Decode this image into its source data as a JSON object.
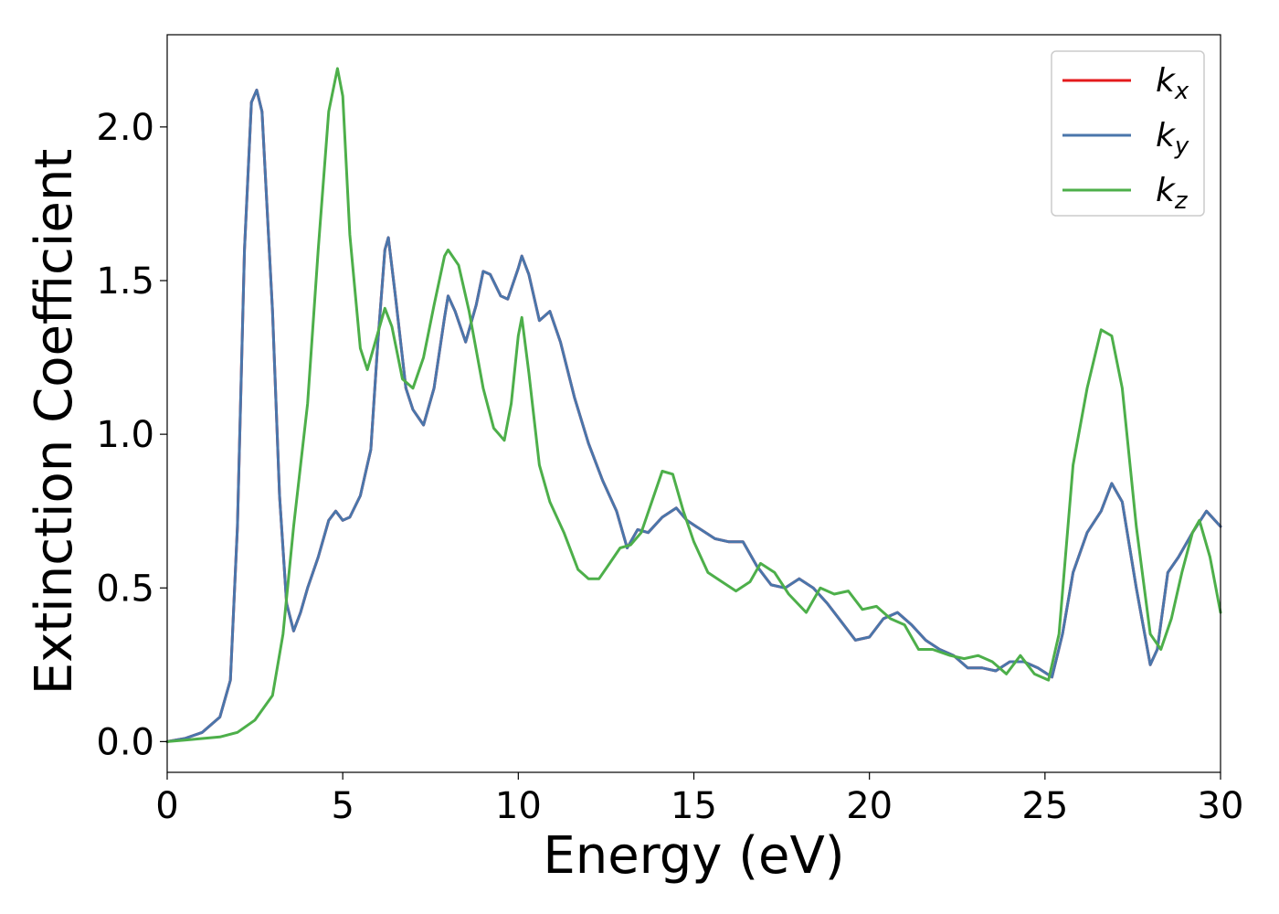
{
  "chart_data": {
    "type": "line",
    "title": "",
    "xlabel": "Energy (eV)",
    "ylabel": "Extinction Coefficient",
    "xlim": [
      0,
      30
    ],
    "ylim": [
      -0.1,
      2.3
    ],
    "xticks": [
      0,
      5,
      10,
      15,
      20,
      25,
      30
    ],
    "yticks": [
      0.0,
      0.5,
      1.0,
      1.5,
      2.0
    ],
    "xtick_labels": [
      "0",
      "5",
      "10",
      "15",
      "20",
      "25",
      "30"
    ],
    "ytick_labels": [
      "0.0",
      "0.5",
      "1.0",
      "1.5",
      "2.0"
    ],
    "grid": false,
    "legend_position": "top-right",
    "series": [
      {
        "name": "k",
        "subscript": "x",
        "color": "#e41a1c",
        "points": [
          [
            0,
            0
          ],
          [
            0.5,
            0.01
          ],
          [
            1.0,
            0.03
          ],
          [
            1.5,
            0.08
          ],
          [
            1.8,
            0.2
          ],
          [
            2.0,
            0.7
          ],
          [
            2.2,
            1.6
          ],
          [
            2.4,
            2.08
          ],
          [
            2.55,
            2.12
          ],
          [
            2.7,
            2.05
          ],
          [
            3.0,
            1.4
          ],
          [
            3.2,
            0.8
          ],
          [
            3.4,
            0.45
          ],
          [
            3.6,
            0.36
          ],
          [
            3.8,
            0.42
          ],
          [
            4.0,
            0.5
          ],
          [
            4.3,
            0.6
          ],
          [
            4.6,
            0.72
          ],
          [
            4.8,
            0.75
          ],
          [
            5.0,
            0.72
          ],
          [
            5.2,
            0.73
          ],
          [
            5.5,
            0.8
          ],
          [
            5.8,
            0.95
          ],
          [
            6.0,
            1.3
          ],
          [
            6.2,
            1.6
          ],
          [
            6.3,
            1.64
          ],
          [
            6.5,
            1.45
          ],
          [
            6.8,
            1.15
          ],
          [
            7.0,
            1.08
          ],
          [
            7.3,
            1.03
          ],
          [
            7.6,
            1.15
          ],
          [
            7.9,
            1.38
          ],
          [
            8.0,
            1.45
          ],
          [
            8.2,
            1.4
          ],
          [
            8.5,
            1.3
          ],
          [
            8.8,
            1.42
          ],
          [
            9.0,
            1.53
          ],
          [
            9.2,
            1.52
          ],
          [
            9.5,
            1.45
          ],
          [
            9.7,
            1.44
          ],
          [
            10.0,
            1.54
          ],
          [
            10.1,
            1.58
          ],
          [
            10.3,
            1.52
          ],
          [
            10.6,
            1.37
          ],
          [
            10.9,
            1.4
          ],
          [
            11.2,
            1.3
          ],
          [
            11.6,
            1.12
          ],
          [
            12.0,
            0.97
          ],
          [
            12.4,
            0.85
          ],
          [
            12.8,
            0.75
          ],
          [
            13.1,
            0.63
          ],
          [
            13.4,
            0.69
          ],
          [
            13.7,
            0.68
          ],
          [
            14.1,
            0.73
          ],
          [
            14.5,
            0.76
          ],
          [
            14.8,
            0.72
          ],
          [
            15.2,
            0.69
          ],
          [
            15.6,
            0.66
          ],
          [
            16.0,
            0.65
          ],
          [
            16.4,
            0.65
          ],
          [
            16.8,
            0.57
          ],
          [
            17.2,
            0.51
          ],
          [
            17.6,
            0.5
          ],
          [
            18.0,
            0.53
          ],
          [
            18.4,
            0.5
          ],
          [
            18.8,
            0.45
          ],
          [
            19.2,
            0.39
          ],
          [
            19.6,
            0.33
          ],
          [
            20.0,
            0.34
          ],
          [
            20.4,
            0.4
          ],
          [
            20.8,
            0.42
          ],
          [
            21.2,
            0.38
          ],
          [
            21.6,
            0.33
          ],
          [
            22.0,
            0.3
          ],
          [
            22.4,
            0.28
          ],
          [
            22.8,
            0.24
          ],
          [
            23.2,
            0.24
          ],
          [
            23.6,
            0.23
          ],
          [
            24.0,
            0.26
          ],
          [
            24.4,
            0.26
          ],
          [
            24.8,
            0.24
          ],
          [
            25.2,
            0.21
          ],
          [
            25.5,
            0.35
          ],
          [
            25.8,
            0.55
          ],
          [
            26.2,
            0.68
          ],
          [
            26.6,
            0.75
          ],
          [
            26.9,
            0.84
          ],
          [
            27.2,
            0.78
          ],
          [
            27.6,
            0.5
          ],
          [
            28.0,
            0.25
          ],
          [
            28.2,
            0.3
          ],
          [
            28.5,
            0.55
          ],
          [
            28.8,
            0.6
          ],
          [
            29.2,
            0.68
          ],
          [
            29.6,
            0.75
          ],
          [
            30.0,
            0.7
          ]
        ]
      },
      {
        "name": "k",
        "subscript": "y",
        "color": "#4a76ab",
        "points": [
          [
            0,
            0
          ],
          [
            0.5,
            0.01
          ],
          [
            1.0,
            0.03
          ],
          [
            1.5,
            0.08
          ],
          [
            1.8,
            0.2
          ],
          [
            2.0,
            0.7
          ],
          [
            2.2,
            1.6
          ],
          [
            2.4,
            2.08
          ],
          [
            2.55,
            2.12
          ],
          [
            2.7,
            2.05
          ],
          [
            3.0,
            1.4
          ],
          [
            3.2,
            0.8
          ],
          [
            3.4,
            0.45
          ],
          [
            3.6,
            0.36
          ],
          [
            3.8,
            0.42
          ],
          [
            4.0,
            0.5
          ],
          [
            4.3,
            0.6
          ],
          [
            4.6,
            0.72
          ],
          [
            4.8,
            0.75
          ],
          [
            5.0,
            0.72
          ],
          [
            5.2,
            0.73
          ],
          [
            5.5,
            0.8
          ],
          [
            5.8,
            0.95
          ],
          [
            6.0,
            1.3
          ],
          [
            6.2,
            1.6
          ],
          [
            6.3,
            1.64
          ],
          [
            6.5,
            1.45
          ],
          [
            6.8,
            1.15
          ],
          [
            7.0,
            1.08
          ],
          [
            7.3,
            1.03
          ],
          [
            7.6,
            1.15
          ],
          [
            7.9,
            1.38
          ],
          [
            8.0,
            1.45
          ],
          [
            8.2,
            1.4
          ],
          [
            8.5,
            1.3
          ],
          [
            8.8,
            1.42
          ],
          [
            9.0,
            1.53
          ],
          [
            9.2,
            1.52
          ],
          [
            9.5,
            1.45
          ],
          [
            9.7,
            1.44
          ],
          [
            10.0,
            1.54
          ],
          [
            10.1,
            1.58
          ],
          [
            10.3,
            1.52
          ],
          [
            10.6,
            1.37
          ],
          [
            10.9,
            1.4
          ],
          [
            11.2,
            1.3
          ],
          [
            11.6,
            1.12
          ],
          [
            12.0,
            0.97
          ],
          [
            12.4,
            0.85
          ],
          [
            12.8,
            0.75
          ],
          [
            13.1,
            0.63
          ],
          [
            13.4,
            0.69
          ],
          [
            13.7,
            0.68
          ],
          [
            14.1,
            0.73
          ],
          [
            14.5,
            0.76
          ],
          [
            14.8,
            0.72
          ],
          [
            15.2,
            0.69
          ],
          [
            15.6,
            0.66
          ],
          [
            16.0,
            0.65
          ],
          [
            16.4,
            0.65
          ],
          [
            16.8,
            0.57
          ],
          [
            17.2,
            0.51
          ],
          [
            17.6,
            0.5
          ],
          [
            18.0,
            0.53
          ],
          [
            18.4,
            0.5
          ],
          [
            18.8,
            0.45
          ],
          [
            19.2,
            0.39
          ],
          [
            19.6,
            0.33
          ],
          [
            20.0,
            0.34
          ],
          [
            20.4,
            0.4
          ],
          [
            20.8,
            0.42
          ],
          [
            21.2,
            0.38
          ],
          [
            21.6,
            0.33
          ],
          [
            22.0,
            0.3
          ],
          [
            22.4,
            0.28
          ],
          [
            22.8,
            0.24
          ],
          [
            23.2,
            0.24
          ],
          [
            23.6,
            0.23
          ],
          [
            24.0,
            0.26
          ],
          [
            24.4,
            0.26
          ],
          [
            24.8,
            0.24
          ],
          [
            25.2,
            0.21
          ],
          [
            25.5,
            0.35
          ],
          [
            25.8,
            0.55
          ],
          [
            26.2,
            0.68
          ],
          [
            26.6,
            0.75
          ],
          [
            26.9,
            0.84
          ],
          [
            27.2,
            0.78
          ],
          [
            27.6,
            0.5
          ],
          [
            28.0,
            0.25
          ],
          [
            28.2,
            0.3
          ],
          [
            28.5,
            0.55
          ],
          [
            28.8,
            0.6
          ],
          [
            29.2,
            0.68
          ],
          [
            29.6,
            0.75
          ],
          [
            30.0,
            0.7
          ]
        ]
      },
      {
        "name": "k",
        "subscript": "z",
        "color": "#4daf4a",
        "points": [
          [
            0,
            0
          ],
          [
            0.5,
            0.005
          ],
          [
            1.0,
            0.01
          ],
          [
            1.5,
            0.015
          ],
          [
            2.0,
            0.03
          ],
          [
            2.5,
            0.07
          ],
          [
            3.0,
            0.15
          ],
          [
            3.3,
            0.35
          ],
          [
            3.6,
            0.7
          ],
          [
            4.0,
            1.1
          ],
          [
            4.3,
            1.6
          ],
          [
            4.6,
            2.05
          ],
          [
            4.85,
            2.19
          ],
          [
            5.0,
            2.1
          ],
          [
            5.2,
            1.65
          ],
          [
            5.5,
            1.28
          ],
          [
            5.7,
            1.21
          ],
          [
            6.0,
            1.33
          ],
          [
            6.2,
            1.41
          ],
          [
            6.4,
            1.35
          ],
          [
            6.7,
            1.18
          ],
          [
            7.0,
            1.15
          ],
          [
            7.3,
            1.25
          ],
          [
            7.6,
            1.42
          ],
          [
            7.9,
            1.58
          ],
          [
            8.0,
            1.6
          ],
          [
            8.3,
            1.55
          ],
          [
            8.6,
            1.4
          ],
          [
            9.0,
            1.15
          ],
          [
            9.3,
            1.02
          ],
          [
            9.6,
            0.98
          ],
          [
            9.8,
            1.1
          ],
          [
            10.0,
            1.32
          ],
          [
            10.1,
            1.38
          ],
          [
            10.3,
            1.2
          ],
          [
            10.6,
            0.9
          ],
          [
            10.9,
            0.78
          ],
          [
            11.3,
            0.68
          ],
          [
            11.7,
            0.56
          ],
          [
            12.0,
            0.53
          ],
          [
            12.3,
            0.53
          ],
          [
            12.6,
            0.58
          ],
          [
            12.9,
            0.63
          ],
          [
            13.2,
            0.64
          ],
          [
            13.5,
            0.68
          ],
          [
            13.8,
            0.78
          ],
          [
            14.1,
            0.88
          ],
          [
            14.4,
            0.87
          ],
          [
            14.7,
            0.75
          ],
          [
            15.0,
            0.65
          ],
          [
            15.4,
            0.55
          ],
          [
            15.8,
            0.52
          ],
          [
            16.2,
            0.49
          ],
          [
            16.6,
            0.52
          ],
          [
            16.9,
            0.58
          ],
          [
            17.3,
            0.55
          ],
          [
            17.7,
            0.48
          ],
          [
            18.2,
            0.42
          ],
          [
            18.6,
            0.5
          ],
          [
            19.0,
            0.48
          ],
          [
            19.4,
            0.49
          ],
          [
            19.8,
            0.43
          ],
          [
            20.2,
            0.44
          ],
          [
            20.6,
            0.4
          ],
          [
            21.0,
            0.38
          ],
          [
            21.4,
            0.3
          ],
          [
            21.8,
            0.3
          ],
          [
            22.3,
            0.28
          ],
          [
            22.7,
            0.27
          ],
          [
            23.1,
            0.28
          ],
          [
            23.5,
            0.26
          ],
          [
            23.9,
            0.22
          ],
          [
            24.3,
            0.28
          ],
          [
            24.7,
            0.22
          ],
          [
            25.1,
            0.2
          ],
          [
            25.4,
            0.35
          ],
          [
            25.8,
            0.9
          ],
          [
            26.2,
            1.15
          ],
          [
            26.6,
            1.34
          ],
          [
            26.9,
            1.32
          ],
          [
            27.2,
            1.15
          ],
          [
            27.6,
            0.7
          ],
          [
            28.0,
            0.35
          ],
          [
            28.3,
            0.3
          ],
          [
            28.6,
            0.4
          ],
          [
            28.9,
            0.55
          ],
          [
            29.2,
            0.68
          ],
          [
            29.4,
            0.72
          ],
          [
            29.7,
            0.6
          ],
          [
            30.0,
            0.42
          ]
        ]
      }
    ]
  }
}
